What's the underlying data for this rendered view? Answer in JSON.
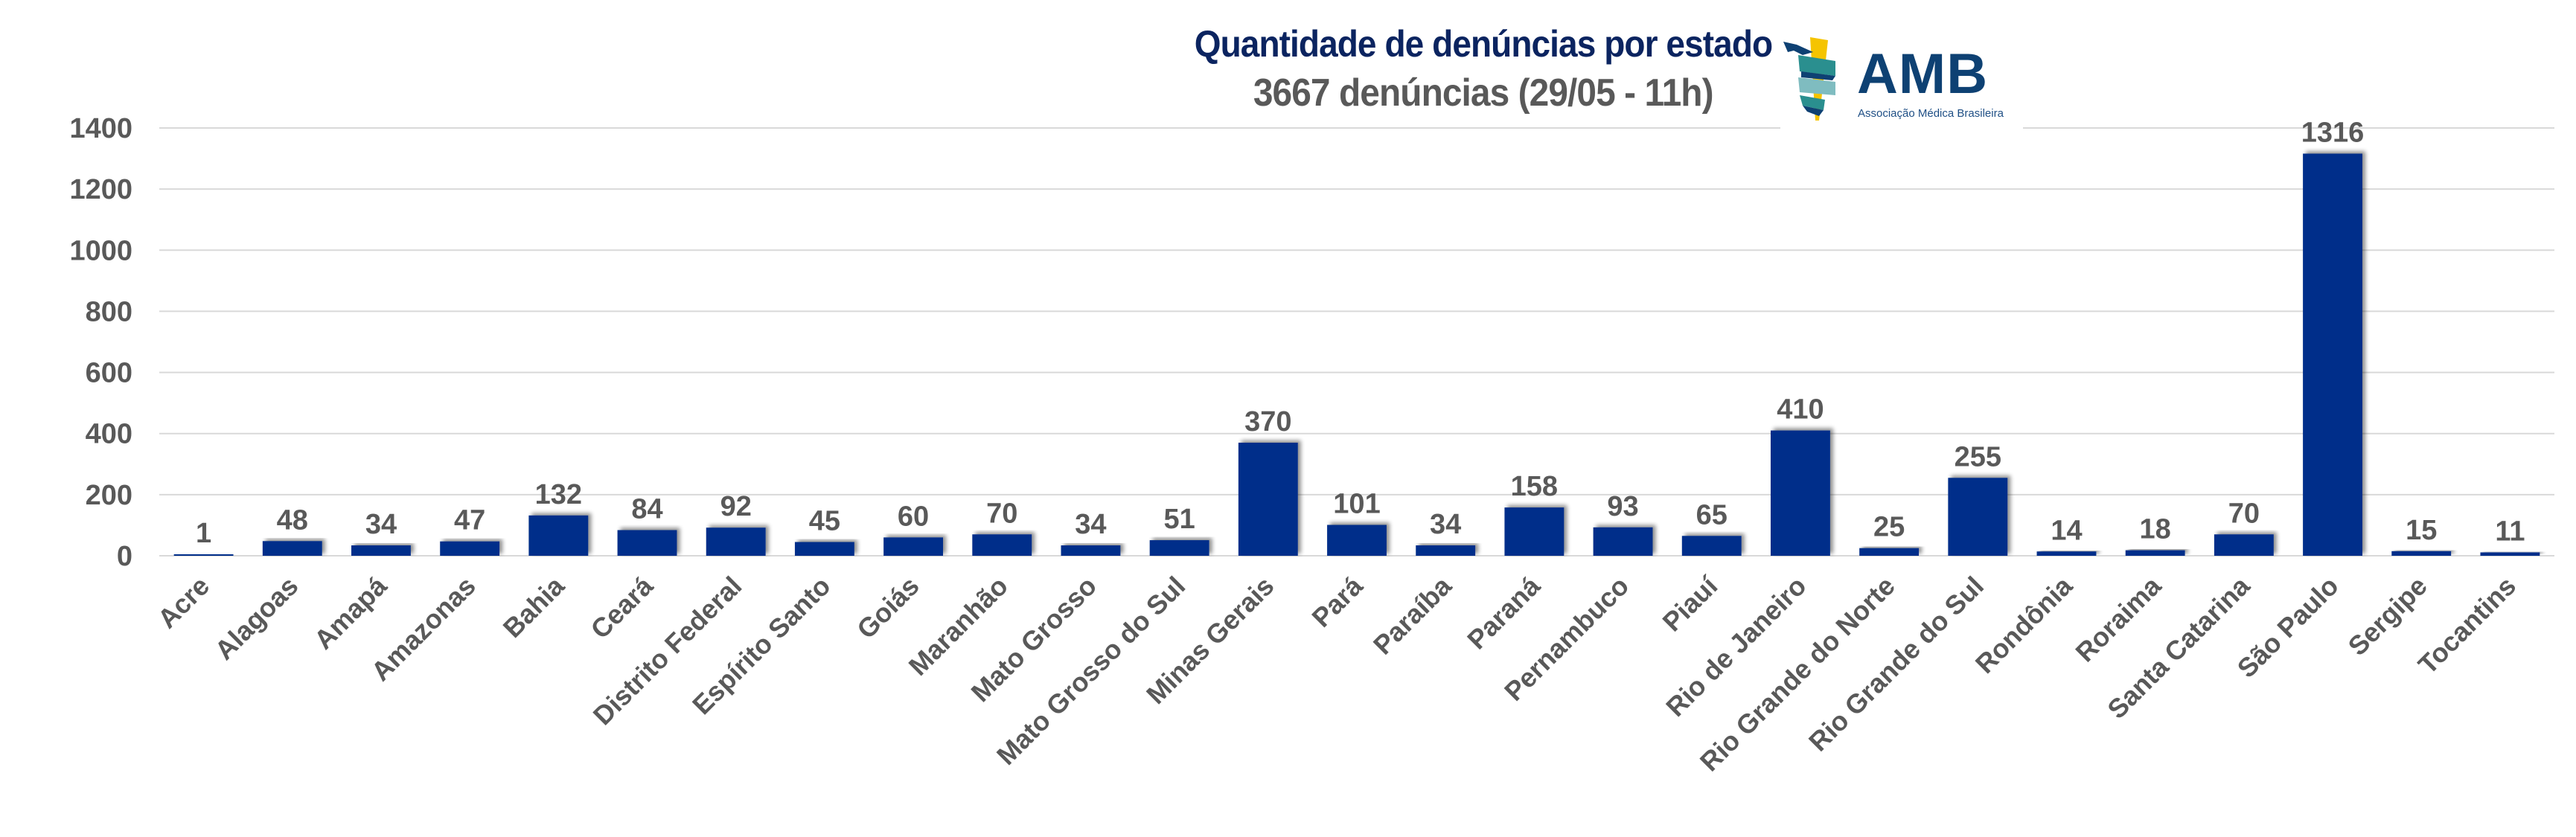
{
  "header": {
    "title": "Quantidade de denúncias por estado",
    "subtitle": "3667 denúncias (29/05 - 11h)"
  },
  "logo": {
    "name": "AMB",
    "tagline": "Associação Médica Brasileira",
    "colors": {
      "navy": "#0e4173",
      "teal": "#2a8f8f",
      "yellow": "#f5c400"
    }
  },
  "colors": {
    "bar": "#002e8a",
    "label": "#595959",
    "title": "#0b2460",
    "grid": "#d9d9d9"
  },
  "chart_data": {
    "type": "bar",
    "title": "Quantidade de denúncias por estado",
    "subtitle": "3667 denúncias (29/05 - 11h)",
    "xlabel": "",
    "ylabel": "",
    "ylim": [
      0,
      1400
    ],
    "yticks": [
      0,
      200,
      400,
      600,
      800,
      1000,
      1200,
      1400
    ],
    "grid": true,
    "legend": "none",
    "data_labels": true,
    "categories": [
      "Acre",
      "Alagoas",
      "Amapá",
      "Amazonas",
      "Bahia",
      "Ceará",
      "Distrito Federal",
      "Espírito Santo",
      "Goiás",
      "Maranhão",
      "Mato Grosso",
      "Mato Grosso do Sul",
      "Minas Gerais",
      "Pará",
      "Paraíba",
      "Paraná",
      "Pernambuco",
      "Piauí",
      "Rio de Janeiro",
      "Rio Grande do Norte",
      "Rio Grande do Sul",
      "Rondônia",
      "Roraima",
      "Santa Catarina",
      "São Paulo",
      "Sergipe",
      "Tocantins"
    ],
    "values": [
      1,
      48,
      34,
      47,
      132,
      84,
      92,
      45,
      60,
      70,
      34,
      51,
      370,
      101,
      34,
      158,
      93,
      65,
      410,
      25,
      255,
      14,
      18,
      70,
      1316,
      15,
      11
    ]
  }
}
